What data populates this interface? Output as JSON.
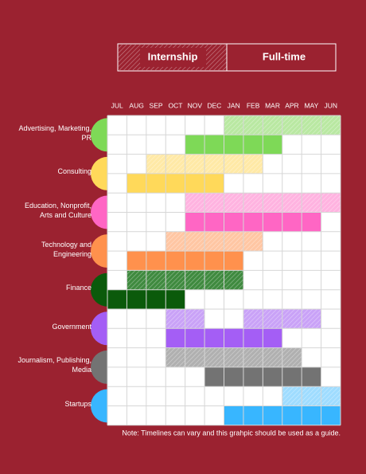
{
  "chart_data": {
    "type": "gantt",
    "note": "Note: Timelines can vary and this grahpic should be used as a guide.",
    "months": [
      "JUL",
      "AUG",
      "SEP",
      "OCT",
      "NOV",
      "DEC",
      "JAN",
      "FEB",
      "MAR",
      "APR",
      "MAY",
      "JUN"
    ],
    "xlim": [
      0,
      12
    ],
    "categories": [
      "Advertising, Marketing, PR",
      "Consulting",
      "Education, Nonprofit, Arts and Culture",
      "Technology and Engineering",
      "Finance",
      "Government",
      "Journalism, Publishing, Media",
      "Startups"
    ],
    "colors": [
      "#7ed957",
      "#ffd95a",
      "#ff66c4",
      "#ff914d",
      "#0b5a0b",
      "#a45ef5",
      "#737373",
      "#38b6ff"
    ],
    "intern_colors": [
      "#b9e8a2",
      "#ffe9a6",
      "#ffb3e0",
      "#ffc6a3",
      "#3f8a3f",
      "#c9a2f7",
      "#b0b0b0",
      "#9fdcff"
    ],
    "series": [
      {
        "name": "Internship",
        "values": [
          [
            [
              6,
              12
            ]
          ],
          [
            [
              2,
              8
            ]
          ],
          [
            [
              4,
              12
            ]
          ],
          [
            [
              3,
              8
            ]
          ],
          [
            [
              1,
              7
            ]
          ],
          [
            [
              3,
              5
            ],
            [
              7,
              11
            ]
          ],
          [
            [
              3,
              10
            ]
          ],
          [
            [
              9,
              12
            ]
          ]
        ]
      },
      {
        "name": "Full-time",
        "values": [
          [
            [
              4,
              9
            ]
          ],
          [
            [
              1,
              6
            ]
          ],
          [
            [
              4,
              11
            ]
          ],
          [
            [
              1,
              7
            ]
          ],
          [
            [
              0,
              4
            ]
          ],
          [
            [
              3,
              9
            ]
          ],
          [
            [
              5,
              11
            ]
          ],
          [
            [
              6,
              12
            ]
          ]
        ]
      }
    ]
  }
}
